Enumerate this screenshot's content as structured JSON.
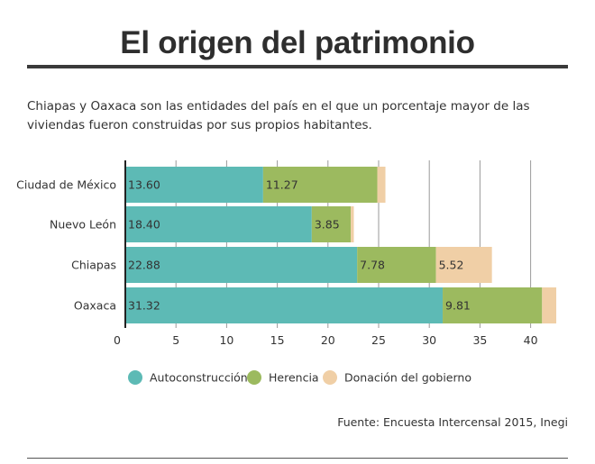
{
  "header": {
    "title": "El origen del patrimonio",
    "subtitle": "Chiapas y Oaxaca son las entidades del país en el que un porcentaje mayor de las viviendas fueron construidas por sus propios habitantes."
  },
  "footer": {
    "source": "Fuente: Encuesta Intercensal 2015, Inegi"
  },
  "chart_data": {
    "type": "bar",
    "orientation": "horizontal",
    "stacked": true,
    "categories": [
      "Ciudad de México",
      "Nuevo León",
      "Chiapas",
      "Oaxaca"
    ],
    "series": [
      {
        "name": "Autoconstrucción",
        "color": "#5dbab5",
        "values": [
          13.6,
          18.4,
          22.88,
          31.32
        ],
        "labels": [
          "13.60",
          "18.40",
          "22.88",
          "31.32"
        ]
      },
      {
        "name": "Herencia",
        "color": "#9cba5f",
        "values": [
          11.27,
          3.85,
          7.78,
          9.81
        ],
        "labels": [
          "11.27",
          "3.85",
          "7.78",
          "9.81"
        ]
      },
      {
        "name": "Donación del gobierno",
        "color": "#f0cfa6",
        "values": [
          0.8,
          0.3,
          5.52,
          1.4
        ],
        "labels": [
          "",
          "",
          "5.52",
          ""
        ]
      }
    ],
    "xlim": [
      0,
      43
    ],
    "xticks": [
      0,
      5,
      10,
      15,
      20,
      25,
      30,
      35,
      40
    ],
    "grid": true,
    "legend": "bottom"
  }
}
